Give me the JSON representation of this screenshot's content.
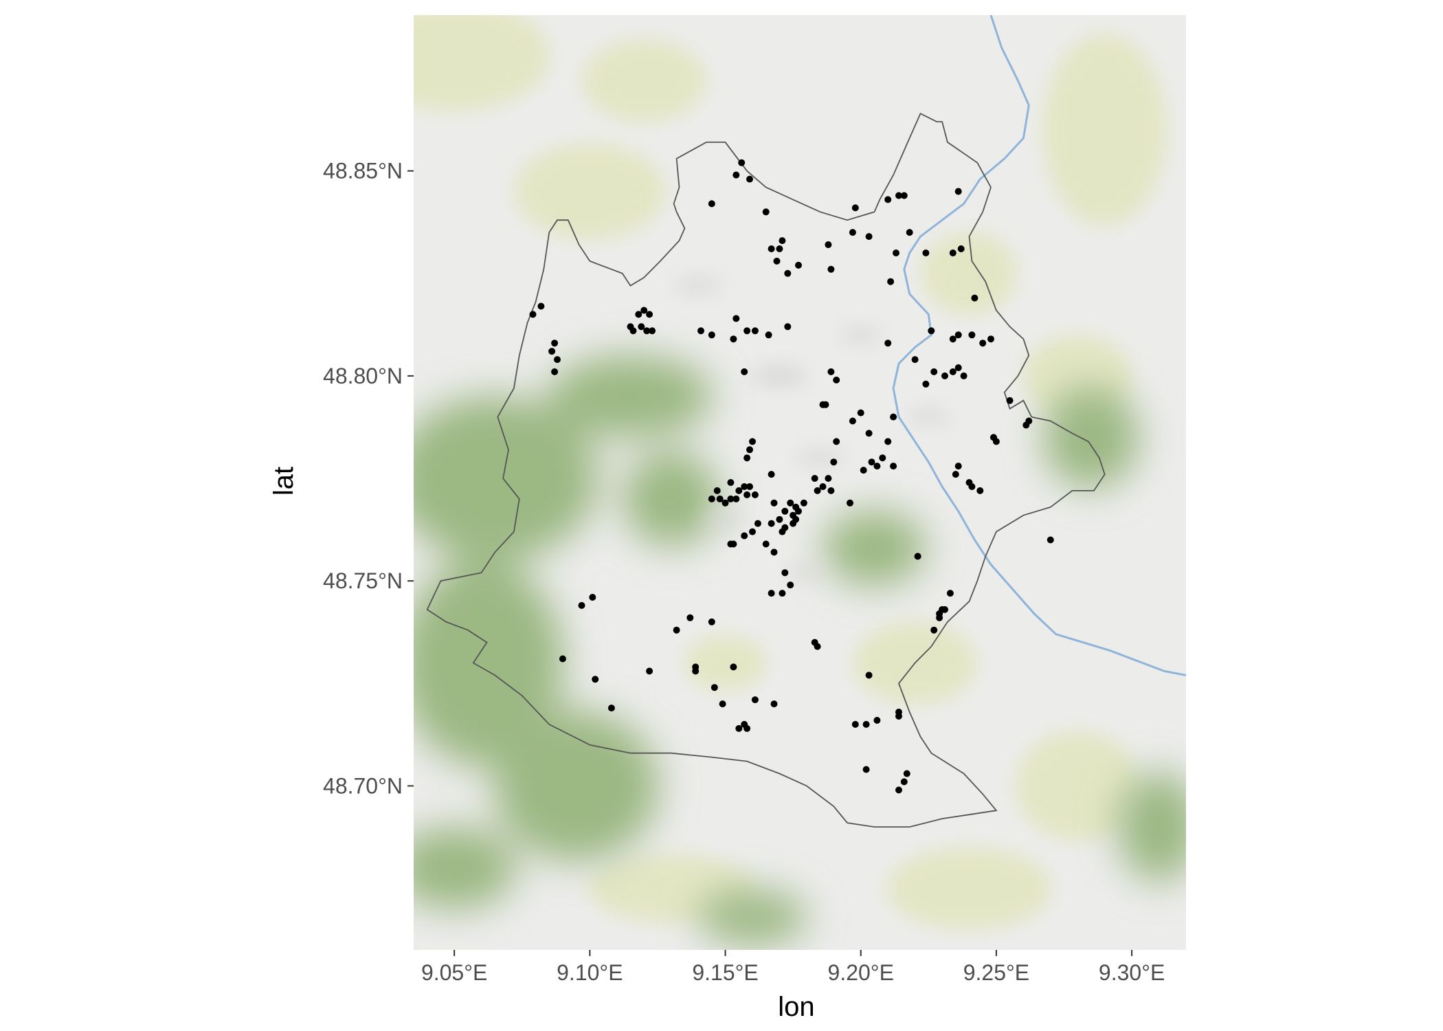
{
  "map": {
    "xlabel": "lon",
    "ylabel": "lat",
    "xlim": [
      9.035,
      9.32
    ],
    "ylim": [
      48.66,
      48.888
    ],
    "x_ticks": [
      {
        "value": 9.05,
        "label": "9.05°E"
      },
      {
        "value": 9.1,
        "label": "9.10°E"
      },
      {
        "value": 9.15,
        "label": "9.15°E"
      },
      {
        "value": 9.2,
        "label": "9.20°E"
      },
      {
        "value": 9.25,
        "label": "9.25°E"
      },
      {
        "value": 9.3,
        "label": "9.30°E"
      }
    ],
    "y_ticks": [
      {
        "value": 48.7,
        "label": "48.70°N"
      },
      {
        "value": 48.75,
        "label": "48.75°N"
      },
      {
        "value": 48.8,
        "label": "48.80°N"
      },
      {
        "value": 48.85,
        "label": "48.85°N"
      }
    ],
    "colors": {
      "point": "#000000",
      "boundary": "#555555",
      "river": "#8fb4d9",
      "base": "#ececeb",
      "forest": "#9cb883",
      "farmland": "#e3e6c4"
    },
    "basemap": "terrain tiles",
    "boundary": [
      [
        9.132,
        48.853
      ],
      [
        9.143,
        48.857
      ],
      [
        9.15,
        48.857
      ],
      [
        9.158,
        48.85
      ],
      [
        9.165,
        48.846
      ],
      [
        9.175,
        48.843
      ],
      [
        9.185,
        48.84
      ],
      [
        9.195,
        48.838
      ],
      [
        9.205,
        48.84
      ],
      [
        9.207,
        48.843
      ],
      [
        9.212,
        48.849
      ],
      [
        9.218,
        48.858
      ],
      [
        9.222,
        48.864
      ],
      [
        9.228,
        48.862
      ],
      [
        9.23,
        48.862
      ],
      [
        9.232,
        48.857
      ],
      [
        9.243,
        48.852
      ],
      [
        9.248,
        48.846
      ],
      [
        9.245,
        48.84
      ],
      [
        9.24,
        48.834
      ],
      [
        9.241,
        48.828
      ],
      [
        9.246,
        48.823
      ],
      [
        9.25,
        48.816
      ],
      [
        9.255,
        48.812
      ],
      [
        9.26,
        48.809
      ],
      [
        9.262,
        48.805
      ],
      [
        9.258,
        48.8
      ],
      [
        9.253,
        48.796
      ],
      [
        9.255,
        48.792
      ],
      [
        9.26,
        48.794
      ],
      [
        9.263,
        48.79
      ],
      [
        9.27,
        48.789
      ],
      [
        9.278,
        48.786
      ],
      [
        9.284,
        48.784
      ],
      [
        9.288,
        48.78
      ],
      [
        9.29,
        48.776
      ],
      [
        9.286,
        48.772
      ],
      [
        9.278,
        48.772
      ],
      [
        9.27,
        48.768
      ],
      [
        9.26,
        48.766
      ],
      [
        9.25,
        48.762
      ],
      [
        9.246,
        48.756
      ],
      [
        9.243,
        48.75
      ],
      [
        9.24,
        48.745
      ],
      [
        9.232,
        48.74
      ],
      [
        9.226,
        48.734
      ],
      [
        9.22,
        48.73
      ],
      [
        9.214,
        48.725
      ],
      [
        9.218,
        48.718
      ],
      [
        9.222,
        48.712
      ],
      [
        9.226,
        48.708
      ],
      [
        9.238,
        48.703
      ],
      [
        9.245,
        48.698
      ],
      [
        9.25,
        48.694
      ],
      [
        9.24,
        48.693
      ],
      [
        9.23,
        48.692
      ],
      [
        9.218,
        48.69
      ],
      [
        9.205,
        48.69
      ],
      [
        9.195,
        48.691
      ],
      [
        9.19,
        48.695
      ],
      [
        9.18,
        48.7
      ],
      [
        9.17,
        48.703
      ],
      [
        9.158,
        48.706
      ],
      [
        9.145,
        48.707
      ],
      [
        9.13,
        48.708
      ],
      [
        9.115,
        48.708
      ],
      [
        9.1,
        48.71
      ],
      [
        9.085,
        48.715
      ],
      [
        9.075,
        48.722
      ],
      [
        9.065,
        48.727
      ],
      [
        9.057,
        48.73
      ],
      [
        9.062,
        48.735
      ],
      [
        9.055,
        48.738
      ],
      [
        9.047,
        48.74
      ],
      [
        9.04,
        48.743
      ],
      [
        9.045,
        48.75
      ],
      [
        9.06,
        48.752
      ],
      [
        9.065,
        48.757
      ],
      [
        9.072,
        48.762
      ],
      [
        9.074,
        48.77
      ],
      [
        9.068,
        48.775
      ],
      [
        9.07,
        48.782
      ],
      [
        9.066,
        48.79
      ],
      [
        9.072,
        48.797
      ],
      [
        9.074,
        48.805
      ],
      [
        9.077,
        48.813
      ],
      [
        9.08,
        48.818
      ],
      [
        9.083,
        48.826
      ],
      [
        9.085,
        48.835
      ],
      [
        9.088,
        48.838
      ],
      [
        9.092,
        48.838
      ],
      [
        9.096,
        48.832
      ],
      [
        9.1,
        48.828
      ],
      [
        9.108,
        48.826
      ],
      [
        9.112,
        48.825
      ],
      [
        9.115,
        48.822
      ],
      [
        9.12,
        48.824
      ],
      [
        9.126,
        48.828
      ],
      [
        9.133,
        48.833
      ],
      [
        9.135,
        48.836
      ],
      [
        9.132,
        48.84
      ],
      [
        9.131,
        48.842
      ],
      [
        9.133,
        48.846
      ],
      [
        9.132,
        48.853
      ]
    ],
    "river": [
      [
        9.248,
        48.888
      ],
      [
        9.252,
        48.88
      ],
      [
        9.258,
        48.872
      ],
      [
        9.262,
        48.866
      ],
      [
        9.26,
        48.858
      ],
      [
        9.253,
        48.853
      ],
      [
        9.244,
        48.848
      ],
      [
        9.238,
        48.842
      ],
      [
        9.23,
        48.838
      ],
      [
        9.222,
        48.834
      ],
      [
        9.218,
        48.83
      ],
      [
        9.216,
        48.826
      ],
      [
        9.218,
        48.82
      ],
      [
        9.225,
        48.815
      ],
      [
        9.226,
        48.81
      ],
      [
        9.22,
        48.807
      ],
      [
        9.214,
        48.803
      ],
      [
        9.212,
        48.797
      ],
      [
        9.214,
        48.79
      ],
      [
        9.22,
        48.784
      ],
      [
        9.225,
        48.779
      ],
      [
        9.23,
        48.773
      ],
      [
        9.236,
        48.767
      ],
      [
        9.242,
        48.76
      ],
      [
        9.248,
        48.754
      ],
      [
        9.256,
        48.748
      ],
      [
        9.264,
        48.742
      ],
      [
        9.272,
        48.737
      ],
      [
        9.282,
        48.735
      ],
      [
        9.292,
        48.733
      ],
      [
        9.304,
        48.73
      ],
      [
        9.312,
        48.728
      ],
      [
        9.32,
        48.727
      ]
    ],
    "points": [
      [
        9.156,
        48.852
      ],
      [
        9.154,
        48.849
      ],
      [
        9.159,
        48.848
      ],
      [
        9.145,
        48.842
      ],
      [
        9.165,
        48.84
      ],
      [
        9.198,
        48.841
      ],
      [
        9.21,
        48.843
      ],
      [
        9.214,
        48.844
      ],
      [
        9.216,
        48.844
      ],
      [
        9.236,
        48.845
      ],
      [
        9.197,
        48.835
      ],
      [
        9.203,
        48.834
      ],
      [
        9.218,
        48.835
      ],
      [
        9.171,
        48.833
      ],
      [
        9.17,
        48.831
      ],
      [
        9.167,
        48.831
      ],
      [
        9.188,
        48.832
      ],
      [
        9.224,
        48.83
      ],
      [
        9.213,
        48.83
      ],
      [
        9.234,
        48.83
      ],
      [
        9.237,
        48.831
      ],
      [
        9.169,
        48.828
      ],
      [
        9.177,
        48.827
      ],
      [
        9.173,
        48.825
      ],
      [
        9.189,
        48.826
      ],
      [
        9.211,
        48.823
      ],
      [
        9.242,
        48.819
      ],
      [
        9.082,
        48.817
      ],
      [
        9.079,
        48.815
      ],
      [
        9.115,
        48.812
      ],
      [
        9.118,
        48.815
      ],
      [
        9.12,
        48.816
      ],
      [
        9.122,
        48.815
      ],
      [
        9.119,
        48.812
      ],
      [
        9.123,
        48.811
      ],
      [
        9.116,
        48.811
      ],
      [
        9.121,
        48.811
      ],
      [
        9.154,
        48.814
      ],
      [
        9.173,
        48.812
      ],
      [
        9.141,
        48.811
      ],
      [
        9.145,
        48.81
      ],
      [
        9.158,
        48.811
      ],
      [
        9.161,
        48.811
      ],
      [
        9.166,
        48.81
      ],
      [
        9.153,
        48.809
      ],
      [
        9.226,
        48.811
      ],
      [
        9.236,
        48.81
      ],
      [
        9.234,
        48.809
      ],
      [
        9.241,
        48.81
      ],
      [
        9.248,
        48.809
      ],
      [
        9.245,
        48.808
      ],
      [
        9.21,
        48.808
      ],
      [
        9.087,
        48.808
      ],
      [
        9.086,
        48.806
      ],
      [
        9.088,
        48.804
      ],
      [
        9.087,
        48.801
      ],
      [
        9.22,
        48.804
      ],
      [
        9.236,
        48.802
      ],
      [
        9.227,
        48.801
      ],
      [
        9.231,
        48.8
      ],
      [
        9.234,
        48.801
      ],
      [
        9.238,
        48.8
      ],
      [
        9.157,
        48.801
      ],
      [
        9.189,
        48.801
      ],
      [
        9.191,
        48.799
      ],
      [
        9.224,
        48.798
      ],
      [
        9.186,
        48.793
      ],
      [
        9.187,
        48.793
      ],
      [
        9.255,
        48.794
      ],
      [
        9.2,
        48.791
      ],
      [
        9.197,
        48.789
      ],
      [
        9.212,
        48.79
      ],
      [
        9.262,
        48.789
      ],
      [
        9.261,
        48.788
      ],
      [
        9.203,
        48.786
      ],
      [
        9.191,
        48.784
      ],
      [
        9.16,
        48.784
      ],
      [
        9.159,
        48.782
      ],
      [
        9.158,
        48.78
      ],
      [
        9.249,
        48.785
      ],
      [
        9.25,
        48.784
      ],
      [
        9.21,
        48.784
      ],
      [
        9.208,
        48.78
      ],
      [
        9.204,
        48.779
      ],
      [
        9.206,
        48.778
      ],
      [
        9.201,
        48.777
      ],
      [
        9.212,
        48.778
      ],
      [
        9.19,
        48.779
      ],
      [
        9.236,
        48.778
      ],
      [
        9.235,
        48.776
      ],
      [
        9.24,
        48.774
      ],
      [
        9.241,
        48.773
      ],
      [
        9.244,
        48.772
      ],
      [
        9.183,
        48.775
      ],
      [
        9.188,
        48.775
      ],
      [
        9.186,
        48.773
      ],
      [
        9.184,
        48.772
      ],
      [
        9.189,
        48.772
      ],
      [
        9.167,
        48.776
      ],
      [
        9.152,
        48.774
      ],
      [
        9.155,
        48.772
      ],
      [
        9.157,
        48.773
      ],
      [
        9.159,
        48.773
      ],
      [
        9.158,
        48.771
      ],
      [
        9.152,
        48.77
      ],
      [
        9.154,
        48.77
      ],
      [
        9.147,
        48.772
      ],
      [
        9.145,
        48.77
      ],
      [
        9.148,
        48.77
      ],
      [
        9.15,
        48.769
      ],
      [
        9.161,
        48.771
      ],
      [
        9.168,
        48.769
      ],
      [
        9.174,
        48.769
      ],
      [
        9.176,
        48.768
      ],
      [
        9.172,
        48.767
      ],
      [
        9.175,
        48.766
      ],
      [
        9.17,
        48.765
      ],
      [
        9.179,
        48.769
      ],
      [
        9.177,
        48.767
      ],
      [
        9.176,
        48.765
      ],
      [
        9.175,
        48.764
      ],
      [
        9.172,
        48.763
      ],
      [
        9.171,
        48.762
      ],
      [
        9.167,
        48.764
      ],
      [
        9.162,
        48.764
      ],
      [
        9.16,
        48.762
      ],
      [
        9.157,
        48.761
      ],
      [
        9.152,
        48.759
      ],
      [
        9.153,
        48.759
      ],
      [
        9.165,
        48.759
      ],
      [
        9.168,
        48.757
      ],
      [
        9.196,
        48.769
      ],
      [
        9.221,
        48.756
      ],
      [
        9.172,
        48.752
      ],
      [
        9.174,
        48.749
      ],
      [
        9.167,
        48.747
      ],
      [
        9.171,
        48.747
      ],
      [
        9.27,
        48.76
      ],
      [
        9.097,
        48.744
      ],
      [
        9.101,
        48.746
      ],
      [
        9.233,
        48.747
      ],
      [
        9.23,
        48.743
      ],
      [
        9.229,
        48.742
      ],
      [
        9.231,
        48.743
      ],
      [
        9.229,
        48.741
      ],
      [
        9.137,
        48.741
      ],
      [
        9.145,
        48.74
      ],
      [
        9.132,
        48.738
      ],
      [
        9.227,
        48.738
      ],
      [
        9.183,
        48.735
      ],
      [
        9.184,
        48.734
      ],
      [
        9.09,
        48.731
      ],
      [
        9.139,
        48.729
      ],
      [
        9.139,
        48.728
      ],
      [
        9.153,
        48.729
      ],
      [
        9.122,
        48.728
      ],
      [
        9.203,
        48.727
      ],
      [
        9.102,
        48.726
      ],
      [
        9.146,
        48.724
      ],
      [
        9.161,
        48.721
      ],
      [
        9.149,
        48.72
      ],
      [
        9.168,
        48.72
      ],
      [
        9.108,
        48.719
      ],
      [
        9.214,
        48.718
      ],
      [
        9.214,
        48.717
      ],
      [
        9.206,
        48.716
      ],
      [
        9.198,
        48.715
      ],
      [
        9.202,
        48.715
      ],
      [
        9.157,
        48.715
      ],
      [
        9.155,
        48.714
      ],
      [
        9.158,
        48.714
      ],
      [
        9.202,
        48.704
      ],
      [
        9.217,
        48.703
      ],
      [
        9.216,
        48.701
      ],
      [
        9.214,
        48.699
      ]
    ]
  }
}
